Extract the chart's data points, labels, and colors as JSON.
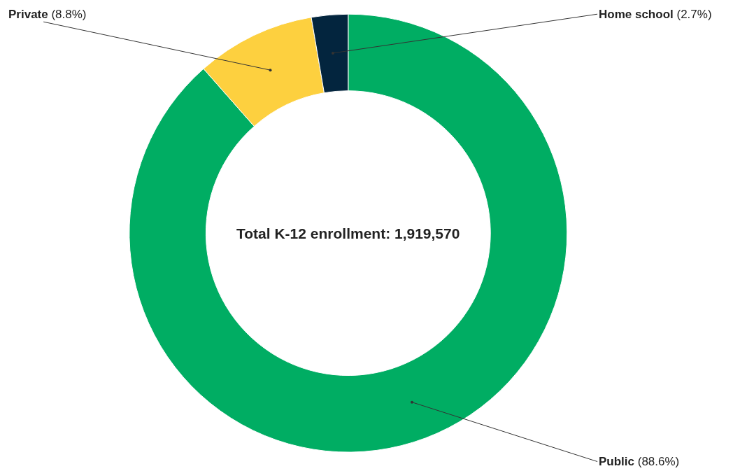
{
  "chart_data": {
    "type": "donut",
    "categories": [
      "Public",
      "Private",
      "Home school"
    ],
    "values": [
      88.6,
      8.8,
      2.7
    ],
    "value_labels": [
      "(88.6%)",
      "(8.8%)",
      "(2.7%)"
    ],
    "colors": [
      "#00ad63",
      "#fdd03f",
      "#03253e"
    ],
    "annotations": [
      "Total K-12 enrollment: 1,919,570"
    ],
    "legend": false
  }
}
